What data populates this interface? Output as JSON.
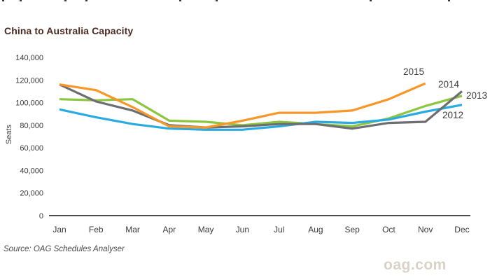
{
  "page": {
    "title": "China to Australia Capacity",
    "title_color": "#4a2b20",
    "ylabel": "Seats",
    "source_note": "Source: OAG Schedules Analyser",
    "brand": "oag.com",
    "brand_color": "#d9d2c6",
    "axis_color": "#4d4d4d",
    "tick_text_color": "#3a3a3a"
  },
  "clipped_top_fragments_x": [
    3,
    28,
    92,
    122,
    256,
    308,
    528,
    640
  ],
  "chart_data": {
    "type": "line",
    "title": "China to Australia Capacity",
    "xlabel": "",
    "ylabel": "Seats",
    "categories": [
      "Jan",
      "Feb",
      "Mar",
      "Apr",
      "May",
      "Jun",
      "Jul",
      "Aug",
      "Sep",
      "Oct",
      "Nov",
      "Dec"
    ],
    "ylim": [
      0,
      140000
    ],
    "yticks": [
      0,
      20000,
      40000,
      60000,
      80000,
      100000,
      120000,
      140000
    ],
    "grid": false,
    "legend_position": "line-end-labels",
    "series": [
      {
        "name": "2012",
        "color": "#29abe2",
        "values": [
          94000,
          87000,
          81000,
          77000,
          76000,
          76000,
          79000,
          83000,
          82000,
          85000,
          92000,
          98000
        ]
      },
      {
        "name": "2013",
        "color": "#8cc63e",
        "values": [
          103000,
          102000,
          103000,
          84000,
          83000,
          80000,
          83000,
          81000,
          79000,
          86000,
          97000,
          106000
        ]
      },
      {
        "name": "2014",
        "color": "#6d6e71",
        "values": [
          116000,
          101000,
          93000,
          80000,
          78000,
          79000,
          81000,
          81000,
          77000,
          82000,
          83000,
          110000
        ]
      },
      {
        "name": "2015",
        "color": "#f89728",
        "values": [
          116000,
          111000,
          96000,
          79000,
          78000,
          84000,
          91000,
          91000,
          93000,
          103000,
          117000,
          null
        ]
      }
    ]
  }
}
